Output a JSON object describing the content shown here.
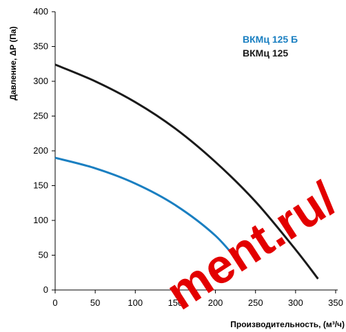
{
  "chart_data": {
    "type": "line",
    "xlabel": "Производительность, (м³/ч)",
    "ylabel": "Давление, ΔP (Па)",
    "xlim": [
      0,
      350
    ],
    "ylim": [
      0,
      400
    ],
    "x_ticks": [
      "0",
      "50",
      "100",
      "150",
      "200",
      "250",
      "300",
      "350"
    ],
    "y_ticks": [
      "0",
      "50",
      "100",
      "150",
      "200",
      "250",
      "300",
      "350",
      "400"
    ],
    "grid": false,
    "legend_position": "top-right",
    "series": [
      {
        "name": "ВКМц 125 Б",
        "color": "#1a7fc1",
        "points": [
          [
            0,
            190
          ],
          [
            50,
            175
          ],
          [
            100,
            153
          ],
          [
            150,
            122
          ],
          [
            200,
            78
          ],
          [
            235,
            32
          ]
        ]
      },
      {
        "name": "ВКМц 125",
        "color": "#1a1a1a",
        "points": [
          [
            0,
            324
          ],
          [
            50,
            300
          ],
          [
            100,
            270
          ],
          [
            150,
            232
          ],
          [
            200,
            184
          ],
          [
            250,
            127
          ],
          [
            300,
            58
          ],
          [
            328,
            16
          ]
        ]
      }
    ]
  },
  "watermark": {
    "text": "ment.ru/",
    "color": "#e30000"
  }
}
